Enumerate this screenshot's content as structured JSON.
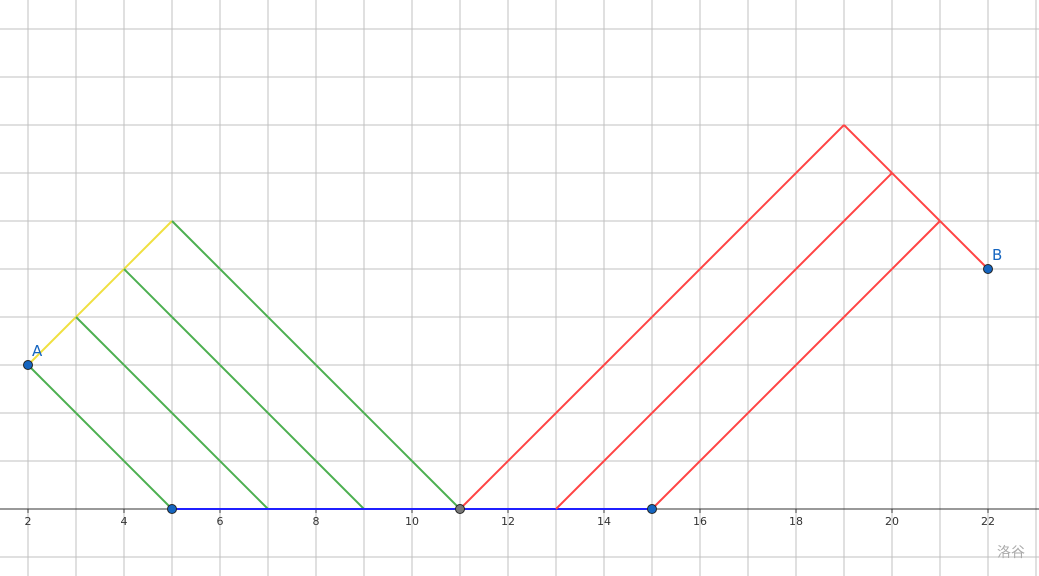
{
  "diagram": {
    "grid": true,
    "x_ticks": [
      2,
      4,
      6,
      8,
      10,
      12,
      14,
      16,
      18,
      20,
      22
    ],
    "points": [
      {
        "label": "A",
        "x": 2,
        "y": 3,
        "color": "#1565c0"
      },
      {
        "label": "B",
        "x": 22,
        "y": 5,
        "color": "#1565c0"
      },
      {
        "label": "",
        "x": 5,
        "y": 0,
        "color": "#1565c0"
      },
      {
        "label": "",
        "x": 11,
        "y": 0,
        "color": "#777777"
      },
      {
        "label": "",
        "x": 15,
        "y": 0,
        "color": "#1565c0"
      }
    ],
    "segments": [
      {
        "from": [
          2,
          3
        ],
        "to": [
          5,
          6
        ],
        "color": "#f0e040"
      },
      {
        "from": [
          2,
          3
        ],
        "to": [
          5,
          0
        ],
        "color": "#4caf50"
      },
      {
        "from": [
          3,
          4
        ],
        "to": [
          7,
          0
        ],
        "color": "#4caf50"
      },
      {
        "from": [
          4,
          5
        ],
        "to": [
          9,
          0
        ],
        "color": "#4caf50"
      },
      {
        "from": [
          5,
          6
        ],
        "to": [
          11,
          0
        ],
        "color": "#4caf50"
      },
      {
        "from": [
          5,
          0
        ],
        "to": [
          15,
          0
        ],
        "color": "#2020ff"
      },
      {
        "from": [
          11,
          0
        ],
        "to": [
          19,
          8
        ],
        "color": "#ff4444"
      },
      {
        "from": [
          19,
          8
        ],
        "to": [
          22,
          5
        ],
        "color": "#ff4444"
      },
      {
        "from": [
          13,
          0
        ],
        "to": [
          20,
          7
        ],
        "color": "#ff4444"
      },
      {
        "from": [
          15,
          0
        ],
        "to": [
          21,
          6
        ],
        "color": "#ff4444"
      }
    ]
  },
  "watermark": "洛谷"
}
